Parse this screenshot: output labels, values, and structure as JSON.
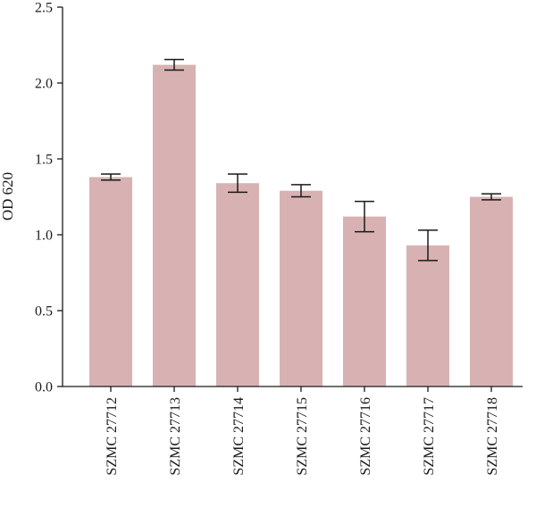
{
  "chart_data": {
    "type": "bar",
    "title": "",
    "xlabel": "",
    "ylabel": "OD 620",
    "ylim": [
      0,
      2.5
    ],
    "yticks": [
      "0.0",
      "0.5",
      "1.0",
      "1.5",
      "2.0",
      "2.5"
    ],
    "grid": false,
    "bar_color": "#d8b2b2",
    "categories": [
      "SZMC 27712",
      "SZMC 27713",
      "SZMC 27714",
      "SZMC 27715",
      "SZMC 27716",
      "SZMC 27717",
      "SZMC 27718"
    ],
    "values": [
      1.38,
      2.12,
      1.34,
      1.29,
      1.12,
      0.93,
      1.25
    ],
    "errors": [
      0.02,
      0.035,
      0.06,
      0.04,
      0.1,
      0.1,
      0.02
    ]
  }
}
